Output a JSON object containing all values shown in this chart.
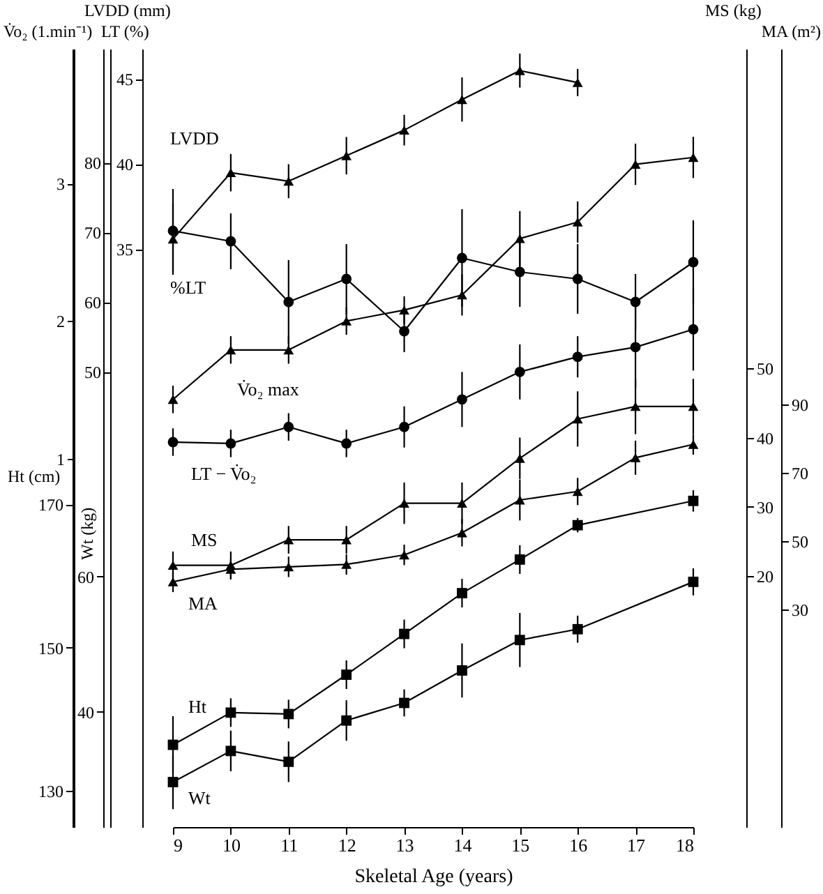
{
  "chart_data": [
    {
      "type": "line",
      "x": [
        9,
        10,
        11,
        12,
        13,
        14,
        15,
        16,
        17,
        18
      ],
      "xlim": [
        9,
        18
      ],
      "tick_labels": "y",
      "ylabel": "V̇o₂ (1.min⁻¹)",
      "ylim": [
        -1.68,
        3.98
      ],
      "yticks": [
        1,
        2,
        3
      ],
      "y2label": "LT (%)",
      "y2lim": [
        -15.3,
        96.3
      ],
      "y2ticks": [
        50,
        60,
        70,
        80
      ],
      "y3label": "LVDD (mm)",
      "y3lim": [
        1.04,
        46.78
      ],
      "y3ticks": [
        35,
        40,
        45
      ],
      "series": [
        {
          "name": "LVDD",
          "axis": "y3",
          "marker": "triangle",
          "color": "#000000",
          "x": [
            9,
            10,
            11,
            12,
            13,
            14,
            15,
            16
          ],
          "values": [
            35.6,
            39.5,
            39.0,
            40.5,
            42.0,
            43.8,
            45.5,
            44.8
          ],
          "errors": [
            2.1,
            1.1,
            1.0,
            1.1,
            0.9,
            1.3,
            1.0,
            0.8
          ]
        },
        {
          "name": "%LT",
          "axis": "y2",
          "marker": "circle",
          "color": "#000000",
          "values": [
            70.2,
            68.7,
            60.0,
            63.3,
            55.8,
            66.3,
            64.3,
            63.3,
            60.0,
            65.7
          ],
          "errors": [
            6,
            4,
            6,
            5,
            3,
            7,
            5,
            5,
            4,
            6
          ]
        },
        {
          "name": "V̇o₂ max",
          "marker": "triangle",
          "color": "#000000",
          "values": [
            1.43,
            1.79,
            1.79,
            2.0,
            2.08,
            2.19,
            2.6,
            2.72,
            3.14,
            3.19
          ],
          "errors": [
            0.1,
            0.1,
            0.1,
            0.1,
            0.1,
            0.15,
            0.2,
            0.15,
            0.15,
            0.15
          ]
        },
        {
          "name": "LT − V̇o₂",
          "marker": "circle",
          "color": "#000000",
          "values": [
            1.12,
            1.11,
            1.23,
            1.11,
            1.23,
            1.43,
            1.63,
            1.74,
            1.81,
            1.94
          ],
          "errors": [
            0.1,
            0.1,
            0.1,
            0.1,
            0.15,
            0.2,
            0.2,
            0.15,
            0.3,
            0.3
          ]
        }
      ]
    },
    {
      "type": "line",
      "x": [
        9,
        10,
        11,
        12,
        13,
        14,
        15,
        16,
        18
      ],
      "xlim": [
        9,
        18
      ],
      "tick_labels": "y",
      "ylabel": "Ht (cm)",
      "ylim": [
        124.9,
        233.7
      ],
      "yticks": [
        130,
        150,
        170
      ],
      "y2label": "Wt (kg)",
      "y2lim": [
        22.95,
        138.0
      ],
      "y2ticks": [
        40,
        60
      ],
      "series": [
        {
          "name": "Ht",
          "marker": "square",
          "color": "#000000",
          "values": [
            136.4,
            140.9,
            140.7,
            146.2,
            151.9,
            157.6,
            162.3,
            167.1,
            170.5
          ],
          "errors": [
            4,
            2,
            2,
            2,
            2,
            2,
            2,
            1,
            1.5
          ]
        },
        {
          "name": "Wt",
          "axis": "y2",
          "marker": "square",
          "color": "#000000",
          "values": [
            29.6,
            34.2,
            32.6,
            38.7,
            41.3,
            46.1,
            50.6,
            52.2,
            59.2
          ],
          "errors": [
            4,
            3,
            3,
            3,
            2,
            4,
            4,
            2,
            2
          ]
        }
      ]
    },
    {
      "type": "line",
      "xlabel": "Skeletal Age (years)",
      "x": [
        9,
        10,
        11,
        12,
        13,
        14,
        15,
        16,
        17,
        18
      ],
      "xlim": [
        9,
        18
      ],
      "xticks": [
        9,
        10,
        11,
        12,
        13,
        14,
        15,
        16,
        17,
        18
      ],
      "ylabel": "MS (kg)",
      "ylim": [
        -16.4,
        96.3
      ],
      "yticks": [
        20,
        30,
        40,
        50
      ],
      "y2label": "MA (m²)",
      "y2lim": [
        -33.9,
        194.3
      ],
      "y2ticks": [
        30,
        50,
        70,
        90
      ],
      "series": [
        {
          "name": "MS",
          "marker": "triangle",
          "color": "#000000",
          "values": [
            21.5,
            21.5,
            25.2,
            25.2,
            30.5,
            30.5,
            37.0,
            42.7,
            44.5,
            44.5
          ],
          "errors": [
            2,
            2,
            2,
            2,
            3,
            3,
            3,
            4,
            4,
            4
          ]
        },
        {
          "name": "MA",
          "axis": "y2",
          "marker": "triangle",
          "color": "#000000",
          "values": [
            38.0,
            41.7,
            42.4,
            43.1,
            45.9,
            52.4,
            62.0,
            64.5,
            74.4,
            78.3
          ],
          "errors": [
            3,
            3,
            3,
            3,
            3,
            4,
            6,
            4,
            5,
            3
          ]
        }
      ]
    }
  ]
}
